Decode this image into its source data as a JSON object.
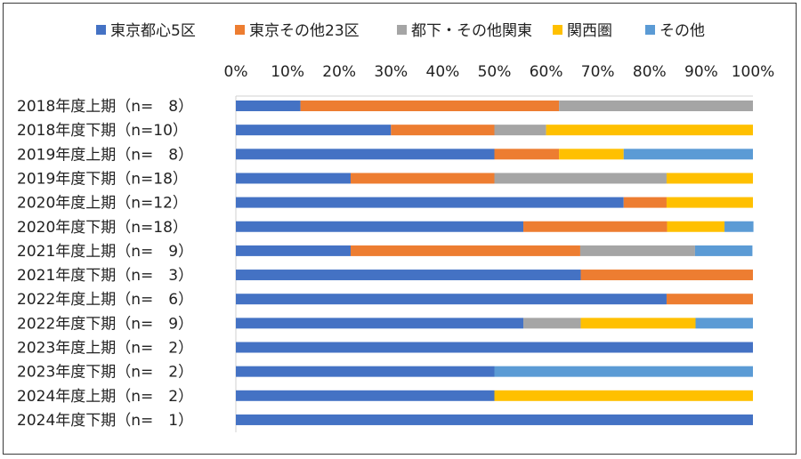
{
  "chart_data": {
    "type": "bar",
    "orientation": "horizontal",
    "stacked": "percent",
    "categories": [
      "2018年度上期（n=　8）",
      "2018年度下期（n=10）",
      "2019年度上期（n=　8）",
      "2019年度下期（n=18）",
      "2020年度上期（n=12）",
      "2020年度下期（n=18）",
      "2021年度上期（n=　9）",
      "2021年度下期（n=　3）",
      "2022年度上期（n=　6）",
      "2022年度下期（n=　9）",
      "2023年度上期（n=　2）",
      "2023年度下期（n=　2）",
      "2024年度上期（n=　2）",
      "2024年度下期（n=　1）"
    ],
    "series": [
      {
        "name": "東京都心5区",
        "color": "#4472C4",
        "values": [
          12.5,
          30.0,
          50.0,
          22.2,
          75.0,
          55.6,
          22.2,
          66.7,
          83.3,
          55.6,
          100.0,
          50.0,
          50.0,
          100.0
        ]
      },
      {
        "name": "東京その他23区",
        "color": "#ED7D31",
        "values": [
          50.0,
          20.0,
          12.5,
          27.8,
          8.3,
          27.8,
          44.4,
          33.3,
          16.7,
          0,
          0,
          0,
          0,
          0
        ]
      },
      {
        "name": "都下・その他関東",
        "color": "#A5A5A5",
        "values": [
          37.5,
          10.0,
          0,
          33.3,
          0,
          0,
          22.2,
          0,
          0,
          11.1,
          0,
          0,
          0,
          0
        ]
      },
      {
        "name": "関西圏",
        "color": "#FFC000",
        "values": [
          0,
          40.0,
          12.5,
          16.7,
          16.7,
          11.1,
          0,
          0,
          0,
          22.2,
          0,
          0,
          50.0,
          0
        ]
      },
      {
        "name": "その他",
        "color": "#5B9BD5",
        "values": [
          0,
          0,
          25.0,
          0,
          0,
          5.6,
          11.1,
          0,
          0,
          11.1,
          0,
          50.0,
          0,
          0
        ]
      }
    ],
    "xlim": [
      0,
      100
    ],
    "x_ticks": [
      "0%",
      "10%",
      "20%",
      "30%",
      "40%",
      "50%",
      "60%",
      "70%",
      "80%",
      "90%",
      "100%"
    ],
    "x_axis_position": "top",
    "legend_position": "top",
    "grid": false
  }
}
